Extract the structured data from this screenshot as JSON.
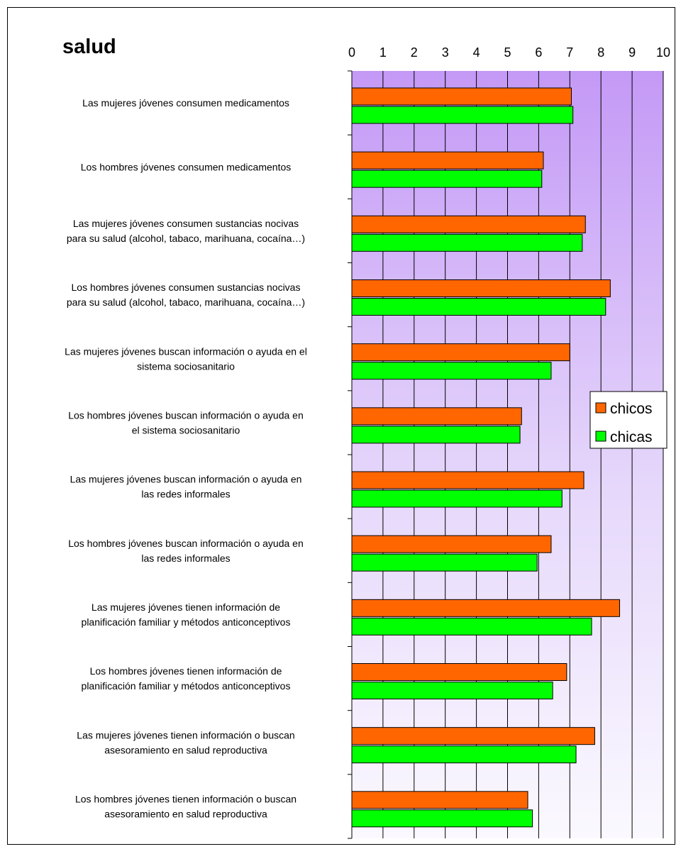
{
  "chart_data": {
    "type": "bar",
    "orientation": "horizontal",
    "title": "salud",
    "categories": [
      [
        "Las mujeres jóvenes consumen medicamentos"
      ],
      [
        "Los hombres jóvenes consumen medicamentos"
      ],
      [
        "Las mujeres jóvenes consumen sustancias nocivas",
        "para su salud (alcohol, tabaco, marihuana, cocaína…)"
      ],
      [
        "Los hombres jóvenes consumen sustancias nocivas",
        "para su salud (alcohol, tabaco, marihuana, cocaína…)"
      ],
      [
        "Las mujeres jóvenes buscan información o ayuda en el",
        "sistema sociosanitario"
      ],
      [
        "Los hombres jóvenes buscan información o ayuda en",
        "el sistema sociosanitario"
      ],
      [
        "Las mujeres jóvenes buscan información o ayuda en",
        "las redes informales"
      ],
      [
        "Los hombres jóvenes buscan información o ayuda en",
        "las redes informales"
      ],
      [
        "Las mujeres jóvenes tienen información de",
        "planificación familiar y métodos anticonceptivos"
      ],
      [
        "Los hombres jóvenes tienen información de",
        "planificación familiar y métodos anticonceptivos"
      ],
      [
        "Las mujeres jóvenes tienen información o buscan",
        "asesoramiento en salud reproductiva"
      ],
      [
        "Los hombres jóvenes tienen información o buscan",
        "asesoramiento en salud reproductiva"
      ]
    ],
    "series": [
      {
        "name": "chicos",
        "color": "#ff6600",
        "values": [
          7.05,
          6.15,
          7.5,
          8.3,
          7.0,
          5.45,
          7.45,
          6.4,
          8.6,
          6.9,
          7.8,
          5.65
        ]
      },
      {
        "name": "chicas",
        "color": "#00ff00",
        "values": [
          7.1,
          6.1,
          7.4,
          8.15,
          6.4,
          5.4,
          6.75,
          5.95,
          7.7,
          6.45,
          7.2,
          5.8
        ]
      }
    ],
    "xlim": [
      0,
      10
    ],
    "xticks": [
      0,
      1,
      2,
      3,
      4,
      5,
      6,
      7,
      8,
      9,
      10
    ],
    "grid": true,
    "legend": "right"
  }
}
